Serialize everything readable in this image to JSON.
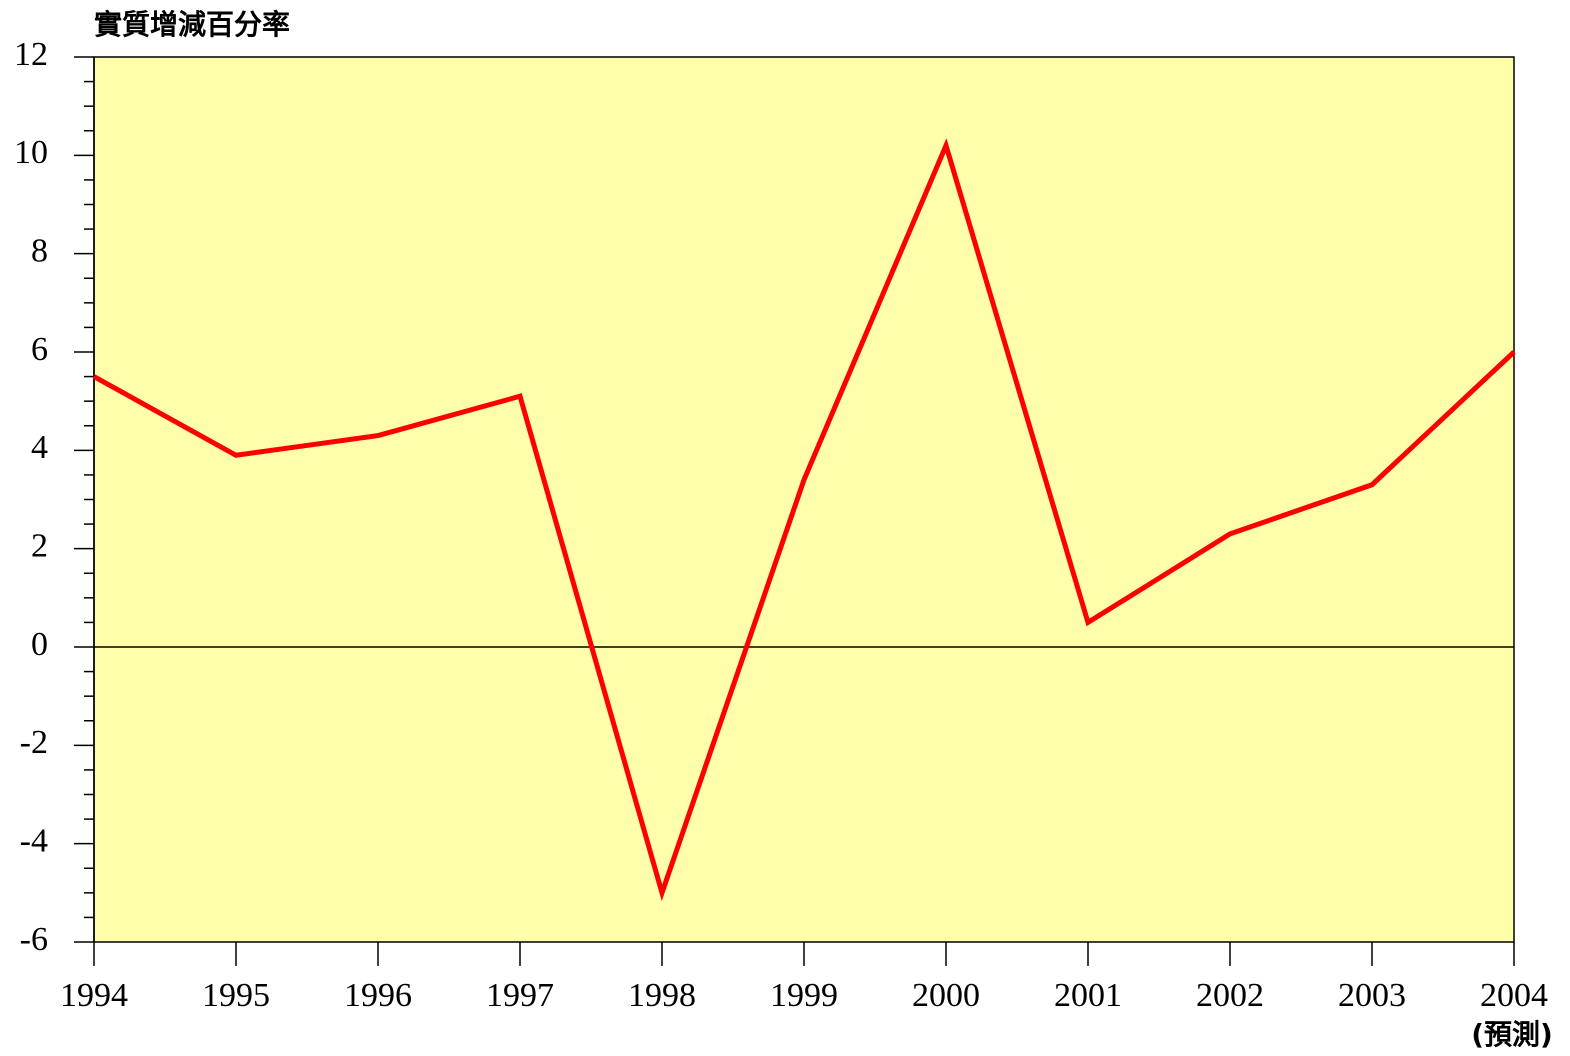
{
  "chart_data": {
    "type": "line",
    "y_axis_label": "實質增減百分率",
    "x": [
      1994,
      1995,
      1996,
      1997,
      1998,
      1999,
      2000,
      2001,
      2002,
      2003,
      2004
    ],
    "series": [
      {
        "name": "實質增減百分率",
        "color": "#ff0000",
        "values": [
          5.5,
          3.9,
          4.3,
          5.1,
          -5.0,
          3.4,
          10.2,
          0.5,
          2.3,
          3.3,
          6.0
        ]
      }
    ],
    "xlim": [
      1994,
      2004
    ],
    "xticks": [
      1994,
      1995,
      1996,
      1997,
      1998,
      1999,
      2000,
      2001,
      2002,
      2003,
      2004
    ],
    "ylim": [
      -6,
      12
    ],
    "yticks": [
      -6,
      -4,
      -2,
      0,
      2,
      4,
      6,
      8,
      10,
      12
    ],
    "yminorticks": [
      -5.5,
      -5,
      -4.5,
      -3.5,
      -3,
      -2.5,
      -1.5,
      -1,
      -0.5,
      0.5,
      1,
      1.5,
      2.5,
      3,
      3.5,
      4.5,
      5,
      5.5,
      6.5,
      7,
      7.5,
      8.5,
      9,
      9.5,
      10.5,
      11,
      11.5
    ],
    "annotation": "(預測)",
    "background": "#ffffaa",
    "zero_line": true
  }
}
